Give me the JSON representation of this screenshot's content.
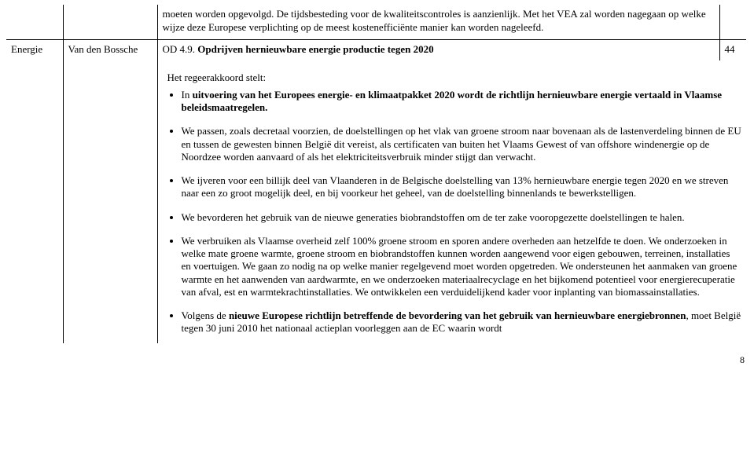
{
  "row1": {
    "text": "moeten worden opgevolgd. De tijdsbesteding voor de kwaliteitscontroles is aanzienlijk. Met het VEA zal worden nagegaan op welke wijze deze Europese verplichting op de meest kostenefficiënte manier kan worden nageleefd."
  },
  "row2": {
    "col1": "Energie",
    "col2": "Van den Bossche",
    "col3_prefix": "OD 4.9. ",
    "col3_title_bold": "Opdrijven hernieuwbare energie productie tegen 2020",
    "col4": "44",
    "intro": "Het regeerakkoord stelt:",
    "bullets": {
      "b1_pre": "In ",
      "b1_bold": "uitvoering van het Europees energie- en klimaatpakket 2020 wordt de richtlijn hernieuwbare energie vertaald in Vlaamse beleidsmaatregelen.",
      "b2": "We passen, zoals decretaal voorzien, de doelstellingen op het vlak van groene stroom naar bovenaan als de lastenverdeling binnen de EU en tussen de gewesten binnen België dit vereist, als certificaten van buiten het Vlaams Gewest of van offshore windenergie op de Noordzee worden aanvaard of als het elektriciteitsverbruik minder stijgt dan verwacht.",
      "b3": "We ijveren voor een billijk deel van Vlaanderen in de Belgische doelstelling van 13% hernieuwbare energie tegen 2020 en we streven naar een zo groot mogelijk deel, en bij voorkeur het geheel, van de doelstelling binnenlands te bewerkstelligen.",
      "b4": "We bevorderen het gebruik van de nieuwe generaties biobrandstoffen om de ter zake vooropgezette doelstellingen te halen.",
      "b5": "We verbruiken als Vlaamse overheid zelf 100% groene stroom en sporen andere overheden aan hetzelfde te doen. We onderzoeken in welke mate groene warmte, groene stroom en biobrandstoffen kunnen worden aangewend voor eigen gebouwen, terreinen, installaties en voertuigen. We gaan zo nodig na op welke manier regelgevend moet worden opgetreden. We ondersteunen het aanmaken van groene warmte en het aanwenden van aardwarmte, en we onderzoeken materiaalrecyclage en het bijkomend potentieel voor energierecuperatie van afval, est en warmtekrachtinstallaties. We ontwikkelen een verduidelijkend kader voor inplanting van biomassainstallaties.",
      "b6_pre": "Volgens de ",
      "b6_bold": "nieuwe Europese richtlijn betreffende de bevordering van het gebruik van hernieuwbare energiebronnen",
      "b6_post": ", moet België tegen 30 juni 2010 het nationaal actieplan voorleggen aan de EC waarin wordt"
    }
  },
  "page_number": "8"
}
